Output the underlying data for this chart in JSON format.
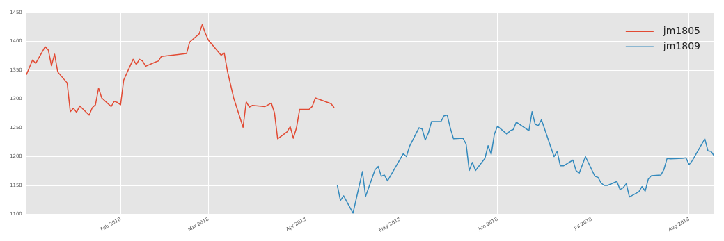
{
  "chart_data": {
    "type": "line",
    "xlim": [
      "2018-01-02",
      "2018-08-09"
    ],
    "xticks": [
      {
        "value": "2018-02-01",
        "label": "Feb 2018"
      },
      {
        "value": "2018-03-01",
        "label": "Mar 2018"
      },
      {
        "value": "2018-04-01",
        "label": "Apr 2018"
      },
      {
        "value": "2018-05-01",
        "label": "May 2018"
      },
      {
        "value": "2018-06-01",
        "label": "Jun 2018"
      },
      {
        "value": "2018-07-01",
        "label": "Jul 2018"
      },
      {
        "value": "2018-08-01",
        "label": "Aug 2018"
      }
    ],
    "ylim": [
      1100,
      1450
    ],
    "yticks": [
      1100,
      1150,
      1200,
      1250,
      1300,
      1350,
      1400,
      1450
    ],
    "grid": true,
    "legend": "top right",
    "marker": "none",
    "line_style": "solid",
    "series": [
      {
        "name": "jm1805",
        "color": "#e24a33",
        "x": [
          "2018-01-02",
          "2018-01-04",
          "2018-01-05",
          "2018-01-08",
          "2018-01-09",
          "2018-01-10",
          "2018-01-11",
          "2018-01-12",
          "2018-01-15",
          "2018-01-16",
          "2018-01-17",
          "2018-01-18",
          "2018-01-19",
          "2018-01-22",
          "2018-01-23",
          "2018-01-24",
          "2018-01-25",
          "2018-01-26",
          "2018-01-29",
          "2018-01-30",
          "2018-01-31",
          "2018-02-01",
          "2018-02-02",
          "2018-02-05",
          "2018-02-06",
          "2018-02-07",
          "2018-02-08",
          "2018-02-09",
          "2018-02-12",
          "2018-02-13",
          "2018-02-14",
          "2018-02-22",
          "2018-02-23",
          "2018-02-26",
          "2018-02-27",
          "2018-02-28",
          "2018-03-01",
          "2018-03-05",
          "2018-03-06",
          "2018-03-07",
          "2018-03-09",
          "2018-03-12",
          "2018-03-13",
          "2018-03-14",
          "2018-03-15",
          "2018-03-19",
          "2018-03-21",
          "2018-03-22",
          "2018-03-23",
          "2018-03-26",
          "2018-03-27",
          "2018-03-28",
          "2018-03-29",
          "2018-03-30",
          "2018-04-02",
          "2018-04-03",
          "2018-04-04",
          "2018-04-09",
          "2018-04-10"
        ],
        "values": [
          1342,
          1368,
          1362,
          1391,
          1385,
          1358,
          1378,
          1347,
          1328,
          1278,
          1284,
          1277,
          1288,
          1272,
          1285,
          1290,
          1319,
          1302,
          1287,
          1296,
          1294,
          1290,
          1333,
          1369,
          1360,
          1369,
          1366,
          1357,
          1364,
          1366,
          1374,
          1379,
          1399,
          1413,
          1429,
          1414,
          1402,
          1376,
          1380,
          1349,
          1302,
          1251,
          1295,
          1286,
          1289,
          1287,
          1293,
          1276,
          1231,
          1243,
          1252,
          1232,
          1250,
          1282,
          1282,
          1287,
          1302,
          1292,
          1285
        ]
      },
      {
        "name": "jm1809",
        "color": "#348abd",
        "x": [
          "2018-04-11",
          "2018-04-12",
          "2018-04-13",
          "2018-04-16",
          "2018-04-19",
          "2018-04-20",
          "2018-04-23",
          "2018-04-24",
          "2018-04-25",
          "2018-04-26",
          "2018-04-27",
          "2018-05-02",
          "2018-05-03",
          "2018-05-04",
          "2018-05-07",
          "2018-05-08",
          "2018-05-09",
          "2018-05-10",
          "2018-05-11",
          "2018-05-14",
          "2018-05-15",
          "2018-05-16",
          "2018-05-17",
          "2018-05-18",
          "2018-05-21",
          "2018-05-22",
          "2018-05-23",
          "2018-05-24",
          "2018-05-25",
          "2018-05-28",
          "2018-05-29",
          "2018-05-30",
          "2018-05-31",
          "2018-06-01",
          "2018-06-04",
          "2018-06-05",
          "2018-06-06",
          "2018-06-07",
          "2018-06-11",
          "2018-06-12",
          "2018-06-13",
          "2018-06-14",
          "2018-06-15",
          "2018-06-19",
          "2018-06-20",
          "2018-06-21",
          "2018-06-22",
          "2018-06-25",
          "2018-06-26",
          "2018-06-27",
          "2018-06-29",
          "2018-07-02",
          "2018-07-03",
          "2018-07-04",
          "2018-07-05",
          "2018-07-06",
          "2018-07-09",
          "2018-07-10",
          "2018-07-11",
          "2018-07-12",
          "2018-07-13",
          "2018-07-16",
          "2018-07-17",
          "2018-07-18",
          "2018-07-19",
          "2018-07-20",
          "2018-07-23",
          "2018-07-24",
          "2018-07-25",
          "2018-07-26",
          "2018-07-30",
          "2018-07-31",
          "2018-08-01",
          "2018-08-02",
          "2018-08-06",
          "2018-08-07",
          "2018-08-08",
          "2018-08-09"
        ],
        "values": [
          1150,
          1124,
          1132,
          1102,
          1174,
          1131,
          1177,
          1183,
          1166,
          1168,
          1158,
          1205,
          1200,
          1218,
          1250,
          1248,
          1229,
          1241,
          1261,
          1261,
          1271,
          1272,
          1249,
          1231,
          1232,
          1222,
          1176,
          1190,
          1176,
          1197,
          1219,
          1204,
          1239,
          1253,
          1239,
          1245,
          1247,
          1260,
          1245,
          1278,
          1256,
          1254,
          1264,
          1200,
          1209,
          1184,
          1184,
          1194,
          1176,
          1171,
          1200,
          1166,
          1164,
          1154,
          1150,
          1150,
          1157,
          1143,
          1146,
          1153,
          1130,
          1139,
          1148,
          1140,
          1161,
          1167,
          1168,
          1178,
          1197,
          1196,
          1197,
          1198,
          1186,
          1193,
          1231,
          1210,
          1209,
          1201
        ]
      }
    ]
  }
}
